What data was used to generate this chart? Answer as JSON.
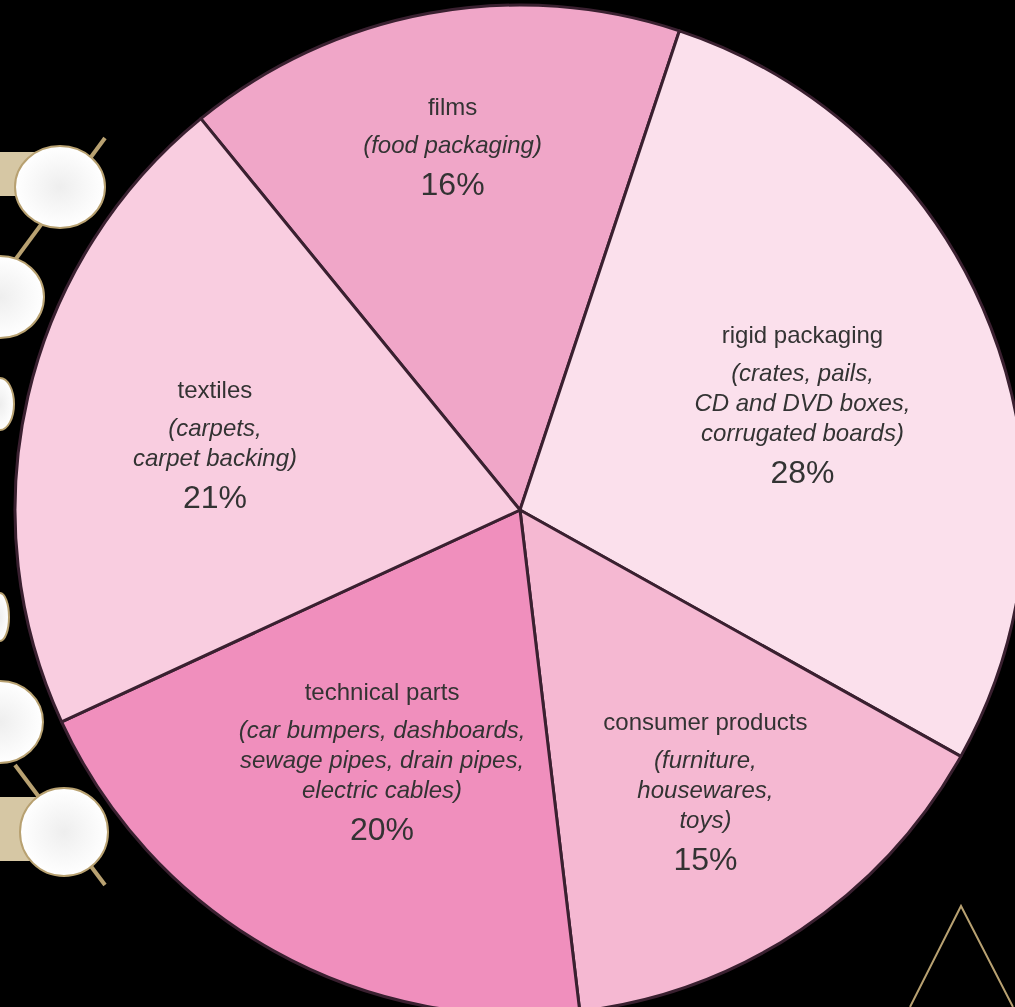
{
  "chart_data": {
    "type": "pie",
    "categories": [
      "films\n(food packaging)",
      "rigid packaging\n(crates, pails,\nCD and DVD boxes,\ncorrugated boards)",
      "consumer products\n(furniture,\nhousewares,\ntoys)",
      "technical parts\n(car bumpers, dashboards,\nsewage pipes, drain pipes,\nelectric cables)",
      "textiles\n(carpets,\ncarpet backing)"
    ],
    "values": [
      16,
      28,
      15,
      20,
      21
    ],
    "colors": [
      "#f0a6c8",
      "#fbe0ec",
      "#f5b8d2",
      "#f08fbd",
      "#f9cde0"
    ],
    "value_labels": [
      "16%",
      "28%",
      "15%",
      "20%",
      "21%"
    ]
  }
}
